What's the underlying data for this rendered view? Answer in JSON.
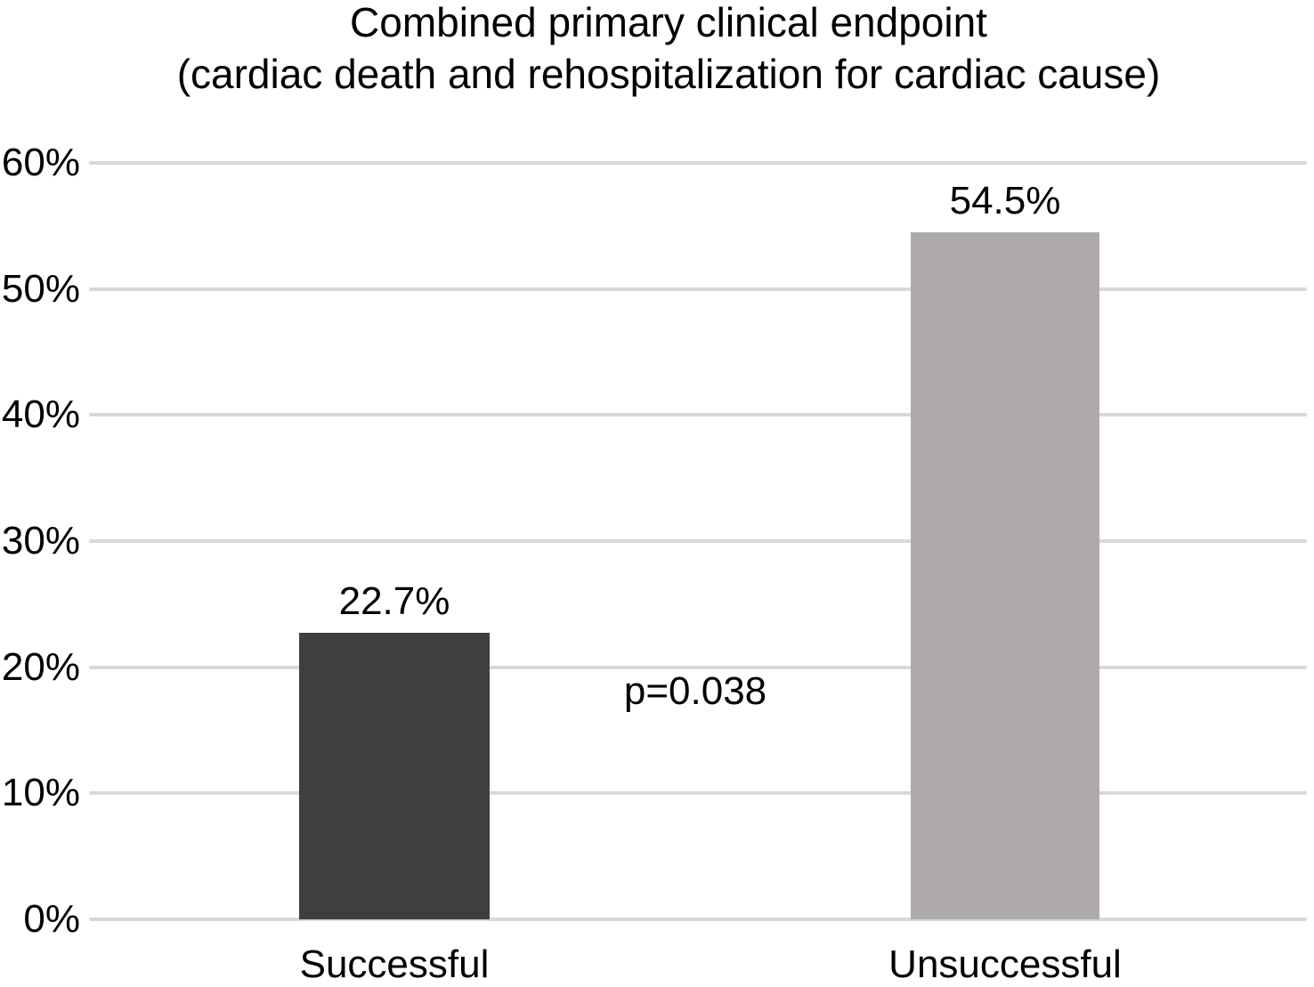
{
  "chart_data": {
    "type": "bar",
    "title_line1": "Combined primary clinical endpoint",
    "title_line2": "(cardiac death and rehospitalization for cardiac cause)",
    "categories": [
      "Successful",
      "Unsuccessful"
    ],
    "values": [
      22.7,
      54.5
    ],
    "value_labels": [
      "22.7%",
      "54.5%"
    ],
    "bar_colors": [
      "#3E3F3F",
      "#AEAAA9"
    ],
    "annotation": "p=0.038",
    "xlabel": "",
    "ylabel": "",
    "ylim": [
      0,
      60
    ],
    "ytick_step": 10,
    "ytick_labels": [
      "0%",
      "10%",
      "20%",
      "30%",
      "40%",
      "50%",
      "60%"
    ],
    "grid": true,
    "legend": "none",
    "gridline_color": "#D8D8D8",
    "text_color": "#000000",
    "background_color": "#FFFFFF"
  }
}
